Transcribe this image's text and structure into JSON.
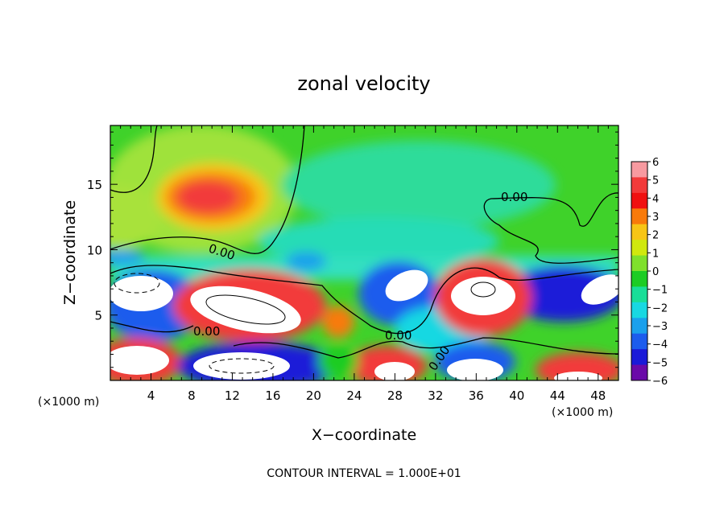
{
  "chart_data": {
    "type": "heatmap",
    "title": "zonal velocity",
    "xlabel": "X−coordinate",
    "ylabel": "Z−coordinate",
    "x_unit_left": "(×1000 m)",
    "x_unit_right": "(×1000 m)",
    "footer": "CONTOUR INTERVAL = 1.000E+01",
    "xlim": [
      0,
      50
    ],
    "ylim": [
      0,
      19.5
    ],
    "xticks": [
      "4",
      "8",
      "12",
      "16",
      "20",
      "24",
      "28",
      "32",
      "36",
      "40",
      "44",
      "48"
    ],
    "xtick_values": [
      4,
      8,
      12,
      16,
      20,
      24,
      28,
      32,
      36,
      40,
      44,
      48
    ],
    "yticks": [
      "5",
      "10",
      "15"
    ],
    "ytick_values": [
      5,
      10,
      15
    ],
    "contour_label": "0.00",
    "colorbar": {
      "labels": [
        "6",
        "5",
        "4",
        "3",
        "2",
        "1",
        "0",
        "−1",
        "−2",
        "−3",
        "−4",
        "−5",
        "−6"
      ],
      "colors": [
        "#f79aa0",
        "#f23a3a",
        "#f01010",
        "#f87a0a",
        "#f7c516",
        "#d0e80e",
        "#7fe02c",
        "#1ccc24",
        "#19de98",
        "#18d8e2",
        "#1aa0ec",
        "#1c5ced",
        "#1a1ad8",
        "#6a0aa8"
      ]
    }
  }
}
